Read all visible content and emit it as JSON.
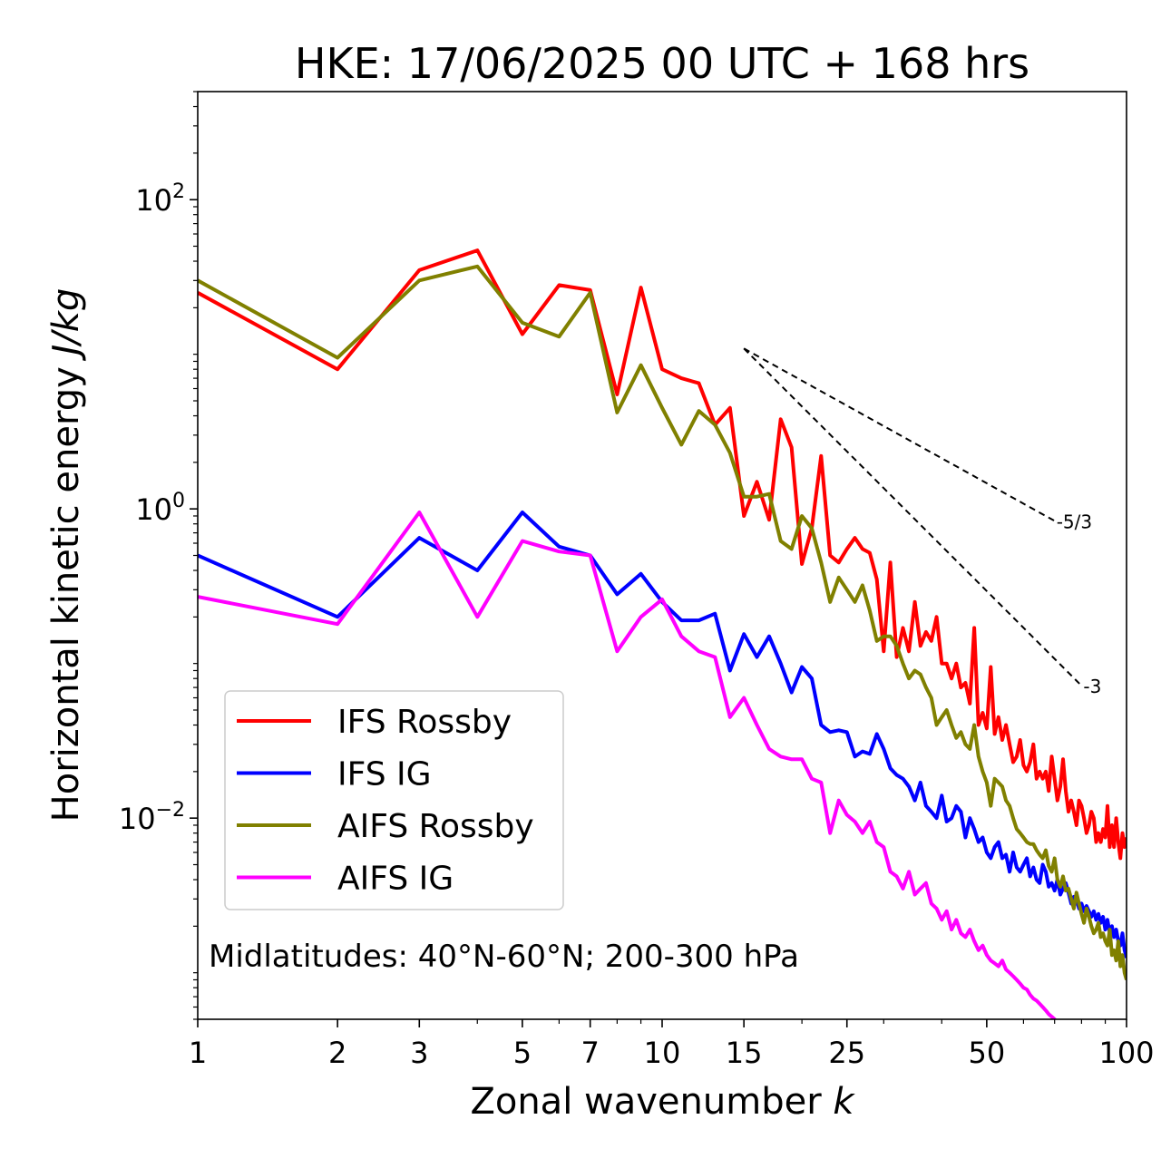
{
  "chart_data": {
    "type": "line",
    "title": "HKE: 17/06/2025 00 UTC + 168 hrs",
    "xlabel": "Zonal wavenumber",
    "xlabel_var": "k",
    "ylabel": "Horizontal kinetic energy",
    "ylabel_unit": "J/kg",
    "xscale": "log",
    "yscale": "log",
    "xlim": [
      1,
      100
    ],
    "ylim": [
      0.0005,
      500
    ],
    "xticks": [
      1,
      2,
      3,
      5,
      7,
      10,
      15,
      25,
      50,
      100
    ],
    "xtick_labels": [
      "1",
      "2",
      "3",
      "5",
      "7",
      "10",
      "15",
      "25",
      "50",
      "100"
    ],
    "yticks": [
      {
        "value": 100,
        "mantissa": "10",
        "exponent": "2"
      },
      {
        "value": 1,
        "mantissa": "10",
        "exponent": "0"
      },
      {
        "value": 0.01,
        "mantissa": "10",
        "exponent": "−2"
      }
    ],
    "grid": false,
    "legend_position": "lower-left",
    "annotation": "Midlatitudes: 40°N-60°N; 200-300 hPa",
    "reference_slopes": [
      {
        "label": "-5/3",
        "exponent": -1.6667,
        "x_start": 15,
        "x_end": 70,
        "y_start": 10.9
      },
      {
        "label": "-3",
        "exponent": -3,
        "x_start": 15,
        "x_end": 80,
        "y_start": 10.9
      }
    ],
    "series": [
      {
        "name": "IFS Rossby",
        "color": "#ff0000",
        "x": [
          1,
          2,
          3,
          4,
          5,
          6,
          7,
          8,
          9,
          10,
          11,
          12,
          13,
          14,
          15,
          16,
          17,
          18,
          19,
          20,
          21,
          22,
          23,
          24,
          25,
          26,
          27,
          28,
          29,
          30,
          31,
          32,
          33,
          34,
          35,
          36,
          37,
          38,
          39,
          40,
          41,
          42,
          43,
          44,
          45,
          46,
          47,
          48,
          49,
          50,
          51,
          52,
          53,
          54,
          55,
          56,
          57,
          58,
          59,
          60,
          61,
          62,
          63,
          64,
          65,
          66,
          67,
          68,
          69,
          70,
          71,
          72,
          73,
          74,
          75,
          76,
          77,
          78,
          79,
          80,
          81,
          82,
          83,
          84,
          85,
          86,
          87,
          88,
          89,
          90,
          91,
          92,
          93,
          94,
          95,
          96,
          97,
          98,
          99,
          100
        ],
        "y": [
          25,
          8,
          35,
          47,
          13.5,
          28,
          26,
          5.5,
          27,
          8,
          7,
          6.5,
          3.5,
          4.5,
          0.9,
          1.5,
          0.85,
          3.8,
          2.5,
          0.44,
          0.75,
          2.2,
          0.5,
          0.45,
          0.55,
          0.65,
          0.55,
          0.52,
          0.35,
          0.12,
          0.45,
          0.11,
          0.17,
          0.12,
          0.25,
          0.13,
          0.16,
          0.14,
          0.2,
          0.1,
          0.1,
          0.08,
          0.1,
          0.07,
          0.075,
          0.055,
          0.17,
          0.04,
          0.048,
          0.038,
          0.095,
          0.035,
          0.045,
          0.032,
          0.04,
          0.03,
          0.023,
          0.025,
          0.032,
          0.022,
          0.02,
          0.023,
          0.03,
          0.018,
          0.02,
          0.018,
          0.02,
          0.015,
          0.025,
          0.018,
          0.013,
          0.016,
          0.024,
          0.015,
          0.011,
          0.013,
          0.011,
          0.009,
          0.013,
          0.012,
          0.01,
          0.008,
          0.009,
          0.011,
          0.01,
          0.007,
          0.008,
          0.007,
          0.0085,
          0.0075,
          0.012,
          0.0065,
          0.009,
          0.0065,
          0.01,
          0.007,
          0.0055,
          0.008,
          0.0065,
          0.0075
        ]
      },
      {
        "name": "IFS IG",
        "color": "#0000ff",
        "x": [
          1,
          2,
          3,
          4,
          5,
          6,
          7,
          8,
          9,
          10,
          11,
          12,
          13,
          14,
          15,
          16,
          17,
          18,
          19,
          20,
          21,
          22,
          23,
          24,
          25,
          26,
          27,
          28,
          29,
          30,
          31,
          32,
          33,
          34,
          35,
          36,
          37,
          38,
          39,
          40,
          41,
          42,
          43,
          44,
          45,
          46,
          47,
          48,
          49,
          50,
          51,
          52,
          53,
          54,
          55,
          56,
          57,
          58,
          59,
          60,
          61,
          62,
          63,
          64,
          65,
          66,
          67,
          68,
          69,
          70,
          71,
          72,
          73,
          74,
          75,
          76,
          77,
          78,
          79,
          80,
          81,
          82,
          83,
          84,
          85,
          86,
          87,
          88,
          89,
          90,
          91,
          92,
          93,
          94,
          95,
          96,
          97,
          98,
          99,
          100
        ],
        "y": [
          0.5,
          0.2,
          0.65,
          0.4,
          0.95,
          0.57,
          0.5,
          0.28,
          0.38,
          0.25,
          0.19,
          0.19,
          0.21,
          0.09,
          0.155,
          0.11,
          0.15,
          0.1,
          0.065,
          0.095,
          0.08,
          0.04,
          0.036,
          0.037,
          0.036,
          0.025,
          0.027,
          0.026,
          0.035,
          0.028,
          0.021,
          0.019,
          0.018,
          0.016,
          0.013,
          0.017,
          0.012,
          0.011,
          0.01,
          0.014,
          0.0095,
          0.01,
          0.012,
          0.011,
          0.0075,
          0.01,
          0.0085,
          0.007,
          0.0075,
          0.006,
          0.0055,
          0.0065,
          0.007,
          0.0055,
          0.0058,
          0.0045,
          0.006,
          0.0048,
          0.0045,
          0.005,
          0.0055,
          0.0042,
          0.0048,
          0.004,
          0.0038,
          0.005,
          0.0045,
          0.0036,
          0.0038,
          0.0034,
          0.004,
          0.0032,
          0.0035,
          0.0038,
          0.0033,
          0.0028,
          0.0031,
          0.003,
          0.0026,
          0.0028,
          0.0025,
          0.0027,
          0.0025,
          0.0023,
          0.0025,
          0.0022,
          0.0024,
          0.0021,
          0.0023,
          0.0019,
          0.0022,
          0.0018,
          0.002,
          0.0017,
          0.0019,
          0.0016,
          0.0015,
          0.0018,
          0.0014,
          0.00125
        ]
      },
      {
        "name": "AIFS Rossby",
        "color": "#808000",
        "x": [
          1,
          2,
          3,
          4,
          5,
          6,
          7,
          8,
          9,
          10,
          11,
          12,
          13,
          14,
          15,
          16,
          17,
          18,
          19,
          20,
          21,
          22,
          23,
          24,
          25,
          26,
          27,
          28,
          29,
          30,
          31,
          32,
          33,
          34,
          35,
          36,
          37,
          38,
          39,
          40,
          41,
          42,
          43,
          44,
          45,
          46,
          47,
          48,
          49,
          50,
          51,
          52,
          53,
          54,
          55,
          56,
          57,
          58,
          59,
          60,
          61,
          62,
          63,
          64,
          65,
          66,
          67,
          68,
          69,
          70,
          71,
          72,
          73,
          74,
          75,
          76,
          77,
          78,
          79,
          80,
          81,
          82,
          83,
          84,
          85,
          86,
          87,
          88,
          89,
          90,
          91,
          92,
          93,
          94,
          95,
          96,
          97,
          98,
          99,
          100
        ],
        "y": [
          30,
          9.5,
          30,
          37,
          16,
          13,
          25,
          4.2,
          8.5,
          4.5,
          2.6,
          4.3,
          3.5,
          2.3,
          1.2,
          1.2,
          1.25,
          0.62,
          0.55,
          0.9,
          0.75,
          0.45,
          0.25,
          0.36,
          0.3,
          0.25,
          0.32,
          0.22,
          0.14,
          0.15,
          0.15,
          0.13,
          0.1,
          0.08,
          0.09,
          0.085,
          0.07,
          0.06,
          0.04,
          0.045,
          0.05,
          0.04,
          0.033,
          0.036,
          0.03,
          0.028,
          0.04,
          0.025,
          0.02,
          0.017,
          0.012,
          0.018,
          0.017,
          0.016,
          0.013,
          0.012,
          0.01,
          0.0085,
          0.008,
          0.0075,
          0.007,
          0.0068,
          0.0068,
          0.0062,
          0.0058,
          0.0055,
          0.0062,
          0.0049,
          0.0045,
          0.0055,
          0.004,
          0.0036,
          0.0042,
          0.0034,
          0.0035,
          0.003,
          0.0026,
          0.0033,
          0.0028,
          0.0024,
          0.0021,
          0.0026,
          0.0023,
          0.002,
          0.0018,
          0.0019,
          0.0021,
          0.0017,
          0.0018,
          0.0016,
          0.0015,
          0.0019,
          0.0013,
          0.0014,
          0.0012,
          0.0016,
          0.0011,
          0.0013,
          0.001,
          0.0009
        ]
      },
      {
        "name": "AIFS IG",
        "color": "#ff00ff",
        "x": [
          1,
          2,
          3,
          4,
          5,
          6,
          7,
          8,
          9,
          10,
          11,
          12,
          13,
          14,
          15,
          16,
          17,
          18,
          19,
          20,
          21,
          22,
          23,
          24,
          25,
          26,
          27,
          28,
          29,
          30,
          31,
          32,
          33,
          34,
          35,
          36,
          37,
          38,
          39,
          40,
          41,
          42,
          43,
          44,
          45,
          46,
          47,
          48,
          49,
          50,
          51,
          52,
          53,
          54,
          55,
          56,
          57,
          58,
          59,
          60,
          61,
          62,
          63,
          64,
          65,
          66,
          67,
          68,
          69,
          70,
          71,
          72,
          73,
          74,
          75,
          76,
          77,
          78,
          79,
          80
        ],
        "y": [
          0.27,
          0.18,
          0.95,
          0.2,
          0.62,
          0.53,
          0.5,
          0.12,
          0.2,
          0.26,
          0.15,
          0.12,
          0.11,
          0.045,
          0.06,
          0.04,
          0.028,
          0.025,
          0.024,
          0.024,
          0.018,
          0.017,
          0.008,
          0.013,
          0.0105,
          0.0095,
          0.008,
          0.0095,
          0.007,
          0.0065,
          0.0045,
          0.0042,
          0.0035,
          0.0045,
          0.0032,
          0.0035,
          0.0038,
          0.0028,
          0.0026,
          0.0022,
          0.0025,
          0.0019,
          0.0022,
          0.0018,
          0.0017,
          0.0019,
          0.0016,
          0.0014,
          0.0015,
          0.0013,
          0.0012,
          0.00115,
          0.0011,
          0.0012,
          0.00105,
          0.001,
          0.00095,
          0.0009,
          0.00085,
          0.0008,
          0.00078,
          0.00072,
          0.00068,
          0.00066,
          0.00063,
          0.0006,
          0.00057,
          0.00054,
          0.00052,
          0.0005,
          0.00048,
          0.00046,
          0.00044,
          0.00042,
          0.0004,
          0.00039,
          0.00038,
          0.00036,
          0.00035,
          0.00034
        ]
      }
    ]
  }
}
